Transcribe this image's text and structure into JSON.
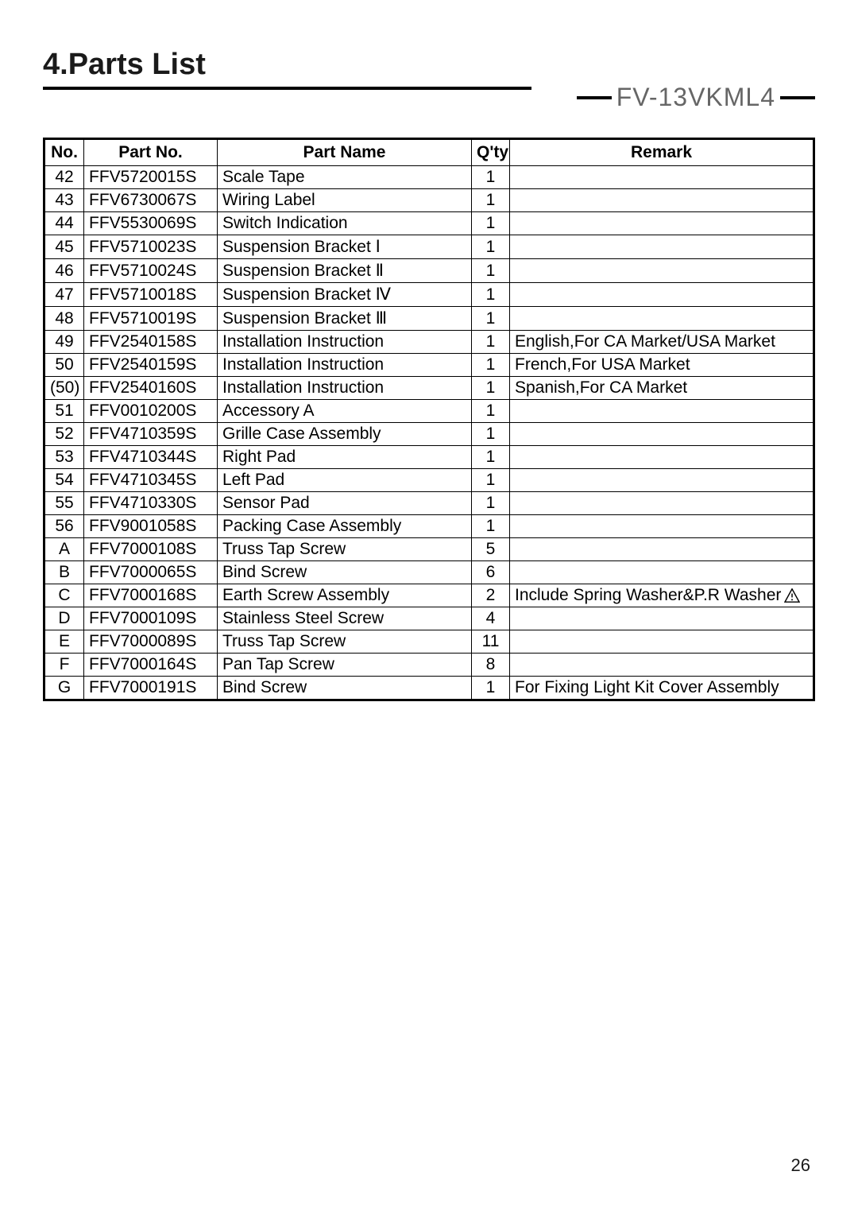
{
  "section_title": "4.Parts List",
  "model_number": "FV-13VKML4",
  "page_number": "26",
  "table": {
    "headers": {
      "no": "No.",
      "partno": "Part No.",
      "name": "Part Name",
      "qty": "Q'ty",
      "remark": "Remark"
    },
    "rows": [
      {
        "no": "42",
        "partno": "FFV5720015S",
        "name": "Scale Tape",
        "qty": "1",
        "remark": ""
      },
      {
        "no": "43",
        "partno": "FFV6730067S",
        "name": "Wiring Label",
        "qty": "1",
        "remark": ""
      },
      {
        "no": "44",
        "partno": "FFV5530069S",
        "name": "Switch Indication",
        "qty": "1",
        "remark": ""
      },
      {
        "no": "45",
        "partno": "FFV5710023S",
        "name": "Suspension Bracket Ⅰ",
        "qty": "1",
        "remark": ""
      },
      {
        "no": "46",
        "partno": "FFV5710024S",
        "name": "Suspension Bracket Ⅱ",
        "qty": "1",
        "remark": ""
      },
      {
        "no": "47",
        "partno": "FFV5710018S",
        "name": "Suspension Bracket Ⅳ",
        "qty": "1",
        "remark": ""
      },
      {
        "no": "48",
        "partno": "FFV5710019S",
        "name": "Suspension Bracket Ⅲ",
        "qty": "1",
        "remark": ""
      },
      {
        "no": "49",
        "partno": "FFV2540158S",
        "name": "Installation Instruction",
        "qty": "1",
        "remark": "English,For CA Market/USA Market"
      },
      {
        "no": "50",
        "partno": "FFV2540159S",
        "name": "Installation Instruction",
        "qty": "1",
        "remark": "French,For USA Market"
      },
      {
        "no": "(50)",
        "partno": "FFV2540160S",
        "name": "Installation Instruction",
        "qty": "1",
        "remark": "Spanish,For CA Market"
      },
      {
        "no": "51",
        "partno": "FFV0010200S",
        "name": "Accessory A",
        "qty": "1",
        "remark": ""
      },
      {
        "no": "52",
        "partno": "FFV4710359S",
        "name": "Grille Case Assembly",
        "qty": "1",
        "remark": ""
      },
      {
        "no": "53",
        "partno": "FFV4710344S",
        "name": "Right Pad",
        "qty": "1",
        "remark": ""
      },
      {
        "no": "54",
        "partno": "FFV4710345S",
        "name": "Left Pad",
        "qty": "1",
        "remark": ""
      },
      {
        "no": "55",
        "partno": "FFV4710330S",
        "name": "Sensor Pad",
        "qty": "1",
        "remark": ""
      },
      {
        "no": "56",
        "partno": "FFV9001058S",
        "name": "Packing Case Assembly",
        "qty": "1",
        "remark": ""
      },
      {
        "no": "A",
        "partno": "FFV7000108S",
        "name": "Truss Tap Screw",
        "qty": "5",
        "remark": ""
      },
      {
        "no": "B",
        "partno": "FFV7000065S",
        "name": "Bind Screw",
        "qty": "6",
        "remark": ""
      },
      {
        "no": "C",
        "partno": "FFV7000168S",
        "name": "Earth Screw Assembly",
        "qty": "2",
        "remark": "Include Spring Washer&P.R Washer",
        "icon": true
      },
      {
        "no": "D",
        "partno": "FFV7000109S",
        "name": "Stainless Steel Screw",
        "qty": "4",
        "remark": ""
      },
      {
        "no": "E",
        "partno": "FFV7000089S",
        "name": "Truss Tap Screw",
        "qty": "11",
        "remark": ""
      },
      {
        "no": "F",
        "partno": "FFV7000164S",
        "name": "Pan Tap Screw",
        "qty": "8",
        "remark": ""
      },
      {
        "no": "G",
        "partno": "FFV7000191S",
        "name": "Bind Screw",
        "qty": "1",
        "remark": "For Fixing Light Kit Cover Assembly"
      }
    ]
  }
}
